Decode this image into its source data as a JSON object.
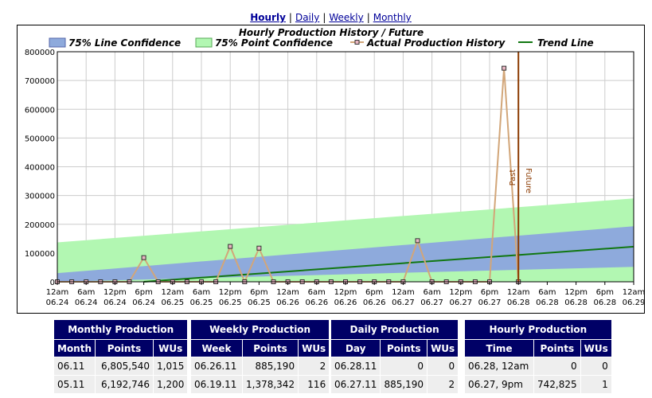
{
  "nav": {
    "hourly": "Hourly",
    "daily": "Daily",
    "weekly": "Weekly",
    "monthly": "Monthly",
    "sep": "|"
  },
  "chart_data": {
    "type": "line",
    "title": "Hourly Production History / Future",
    "legend": [
      "75% Line Confidence",
      "75% Point Confidence",
      "Actual Production History",
      "Trend Line"
    ],
    "legend_placement": "top",
    "grid": true,
    "ylim": [
      0,
      800000
    ],
    "y_ticks": [
      "0",
      "100000",
      "200000",
      "300000",
      "400000",
      "500000",
      "600000",
      "700000",
      "800000"
    ],
    "xlim": [
      0,
      120
    ],
    "x_ticks": [
      [
        "12am",
        "06.24"
      ],
      [
        "6am",
        "06.24"
      ],
      [
        "12pm",
        "06.24"
      ],
      [
        "6pm",
        "06.24"
      ],
      [
        "12am",
        "06.25"
      ],
      [
        "6am",
        "06.25"
      ],
      [
        "12pm",
        "06.25"
      ],
      [
        "6pm",
        "06.25"
      ],
      [
        "12am",
        "06.26"
      ],
      [
        "6am",
        "06.26"
      ],
      [
        "12pm",
        "06.26"
      ],
      [
        "6pm",
        "06.26"
      ],
      [
        "12am",
        "06.27"
      ],
      [
        "6am",
        "06.27"
      ],
      [
        "12pm",
        "06.27"
      ],
      [
        "6pm",
        "06.27"
      ],
      [
        "12am",
        "06.28"
      ],
      [
        "6am",
        "06.28"
      ],
      [
        "12pm",
        "06.28"
      ],
      [
        "6pm",
        "06.28"
      ],
      [
        "12am",
        "06.29"
      ]
    ],
    "actual": [
      [
        0,
        0
      ],
      [
        3,
        0
      ],
      [
        6,
        0
      ],
      [
        9,
        0
      ],
      [
        12,
        0
      ],
      [
        15,
        0
      ],
      [
        18,
        84000
      ],
      [
        21,
        0
      ],
      [
        24,
        0
      ],
      [
        27,
        0
      ],
      [
        30,
        0
      ],
      [
        33,
        0
      ],
      [
        36,
        123000
      ],
      [
        39,
        0
      ],
      [
        42,
        117000
      ],
      [
        45,
        0
      ],
      [
        48,
        0
      ],
      [
        51,
        0
      ],
      [
        54,
        0
      ],
      [
        57,
        0
      ],
      [
        60,
        0
      ],
      [
        63,
        0
      ],
      [
        66,
        0
      ],
      [
        69,
        0
      ],
      [
        72,
        0
      ],
      [
        75,
        143000
      ],
      [
        78,
        0
      ],
      [
        81,
        0
      ],
      [
        84,
        0
      ],
      [
        87,
        0
      ],
      [
        90,
        0
      ],
      [
        93,
        742825
      ],
      [
        96,
        0
      ]
    ],
    "trend": [
      [
        18,
        0
      ],
      [
        120,
        122000
      ]
    ],
    "line_confidence": {
      "x": [
        0,
        120
      ],
      "upper": [
        30000,
        193000
      ],
      "lower": [
        0,
        52000
      ]
    },
    "point_confidence": {
      "x": [
        0,
        120
      ],
      "upper": [
        137000,
        290000
      ],
      "lower": [
        0,
        0
      ]
    },
    "divider": {
      "x": 96,
      "past_label": "Past",
      "future_label": "Future"
    },
    "colors": {
      "line_conf": "#8eaadc",
      "point_conf": "#b2f7b2",
      "actual": "#d2a679",
      "marker": "#e8b6c2",
      "trend": "#117711",
      "divider": "#8b3a00"
    }
  },
  "tables": {
    "monthly": {
      "caption": "Monthly Production",
      "headers": [
        "Month",
        "Points",
        "WUs"
      ],
      "rows": [
        [
          "06.11",
          "6,805,540",
          "1,015"
        ],
        [
          "05.11",
          "6,192,746",
          "1,200"
        ]
      ]
    },
    "weekly": {
      "caption": "Weekly Production",
      "headers": [
        "Week",
        "Points",
        "WUs"
      ],
      "rows": [
        [
          "06.26.11",
          "885,190",
          "2"
        ],
        [
          "06.19.11",
          "1,378,342",
          "116"
        ]
      ]
    },
    "daily": {
      "caption": "Daily Production",
      "headers": [
        "Day",
        "Points",
        "WUs"
      ],
      "rows": [
        [
          "06.28.11",
          "0",
          "0"
        ],
        [
          "06.27.11",
          "885,190",
          "2"
        ]
      ]
    },
    "hourly": {
      "caption": "Hourly Production",
      "headers": [
        "Time",
        "Points",
        "WUs"
      ],
      "rows": [
        [
          "06.28, 12am",
          "0",
          "0"
        ],
        [
          "06.27, 9pm",
          "742,825",
          "1"
        ]
      ]
    }
  }
}
